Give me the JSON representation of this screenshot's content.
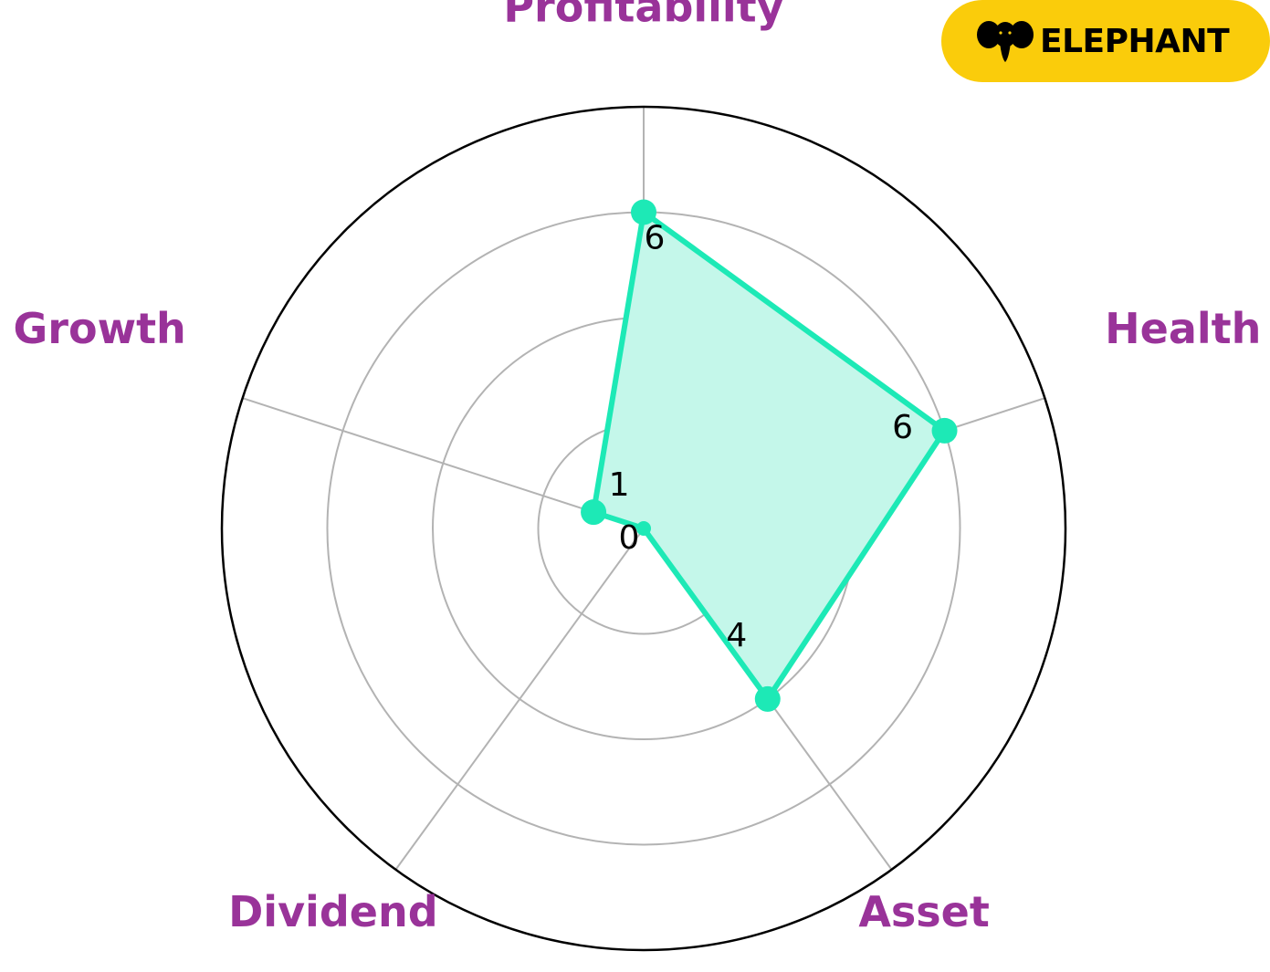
{
  "brand": {
    "name": "ELEPHANT",
    "icon": "elephant-icon",
    "background": "#FACC0B"
  },
  "chart_data": {
    "type": "radar",
    "categories": [
      "Profitability",
      "Health",
      "Asset",
      "Dividend",
      "Growth"
    ],
    "values": [
      6,
      6,
      4,
      0,
      1
    ],
    "value_labels": [
      "6",
      "6",
      "4",
      "0",
      "1"
    ],
    "rlim": [
      0,
      8
    ],
    "rings": [
      2,
      4,
      6,
      8
    ],
    "grid": true,
    "colors": {
      "series": "#1DE9B6",
      "fill": "#C4F7EA",
      "labels": "#993399",
      "grid": "#B3B3B3"
    }
  }
}
